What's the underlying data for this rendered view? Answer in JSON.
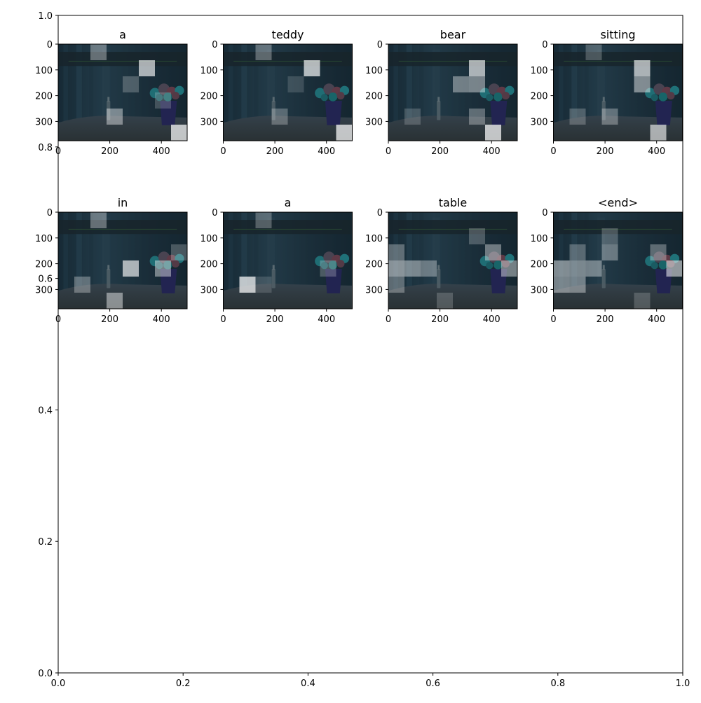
{
  "chart_data": [
    {
      "type": "scatter",
      "title": "",
      "xlabel": "",
      "ylabel": "",
      "xlim": [
        0,
        1
      ],
      "ylim": [
        0,
        1
      ],
      "grid": false,
      "x_ticks": [
        "0.0",
        "0.2",
        "0.4",
        "0.6",
        "0.8",
        "1.0"
      ],
      "y_ticks": [
        "0.0",
        "0.2",
        "0.4",
        "0.6",
        "0.8",
        "1.0"
      ],
      "series": []
    },
    {
      "type": "heatmap",
      "subplot_grid": [
        2,
        4
      ],
      "image_extent": {
        "x": [
          0,
          500
        ],
        "y": [
          375,
          0
        ]
      },
      "x_ticks": [
        "0",
        "200",
        "400"
      ],
      "y_ticks": [
        "0",
        "100",
        "200",
        "300"
      ],
      "attention_grid": [
        6,
        8
      ],
      "overlay_color": "#ffffff",
      "panels": [
        {
          "title": "a",
          "bright_cells": [
            [
              1,
              5,
              0.85
            ],
            [
              0,
              2,
              0.45
            ],
            [
              2,
              4,
              0.3
            ],
            [
              4,
              3,
              0.55
            ],
            [
              5,
              7,
              0.95
            ],
            [
              3,
              6,
              0.25
            ]
          ]
        },
        {
          "title": "teddy",
          "bright_cells": [
            [
              1,
              5,
              0.9
            ],
            [
              0,
              2,
              0.4
            ],
            [
              5,
              7,
              0.95
            ],
            [
              4,
              3,
              0.35
            ],
            [
              2,
              4,
              0.2
            ]
          ]
        },
        {
          "title": "bear",
          "bright_cells": [
            [
              1,
              5,
              0.85
            ],
            [
              2,
              5,
              0.55
            ],
            [
              2,
              4,
              0.5
            ],
            [
              4,
              5,
              0.4
            ],
            [
              5,
              6,
              0.95
            ],
            [
              4,
              1,
              0.25
            ]
          ]
        },
        {
          "title": "sitting",
          "bright_cells": [
            [
              1,
              5,
              0.85
            ],
            [
              2,
              5,
              0.6
            ],
            [
              4,
              3,
              0.4
            ],
            [
              5,
              6,
              0.8
            ],
            [
              4,
              1,
              0.3
            ],
            [
              0,
              2,
              0.3
            ]
          ]
        },
        {
          "title": "in",
          "bright_cells": [
            [
              0,
              2,
              0.45
            ],
            [
              3,
              4,
              0.85
            ],
            [
              3,
              6,
              0.55
            ],
            [
              5,
              3,
              0.6
            ],
            [
              4,
              1,
              0.4
            ],
            [
              2,
              7,
              0.3
            ]
          ]
        },
        {
          "title": "a",
          "bright_cells": [
            [
              4,
              1,
              0.95
            ],
            [
              0,
              2,
              0.35
            ],
            [
              3,
              6,
              0.3
            ],
            [
              4,
              2,
              0.2
            ]
          ]
        },
        {
          "title": "table",
          "bright_cells": [
            [
              3,
              0,
              0.65
            ],
            [
              3,
              1,
              0.55
            ],
            [
              3,
              2,
              0.45
            ],
            [
              2,
              0,
              0.4
            ],
            [
              4,
              0,
              0.4
            ],
            [
              2,
              6,
              0.5
            ],
            [
              3,
              7,
              0.55
            ],
            [
              1,
              5,
              0.3
            ],
            [
              5,
              3,
              0.25
            ]
          ]
        },
        {
          "title": "<end>",
          "bright_cells": [
            [
              3,
              0,
              0.6
            ],
            [
              3,
              1,
              0.55
            ],
            [
              3,
              2,
              0.5
            ],
            [
              4,
              0,
              0.55
            ],
            [
              4,
              1,
              0.5
            ],
            [
              2,
              1,
              0.35
            ],
            [
              2,
              3,
              0.45
            ],
            [
              3,
              7,
              0.7
            ],
            [
              2,
              6,
              0.4
            ],
            [
              1,
              3,
              0.3
            ],
            [
              5,
              5,
              0.25
            ]
          ]
        }
      ]
    }
  ]
}
